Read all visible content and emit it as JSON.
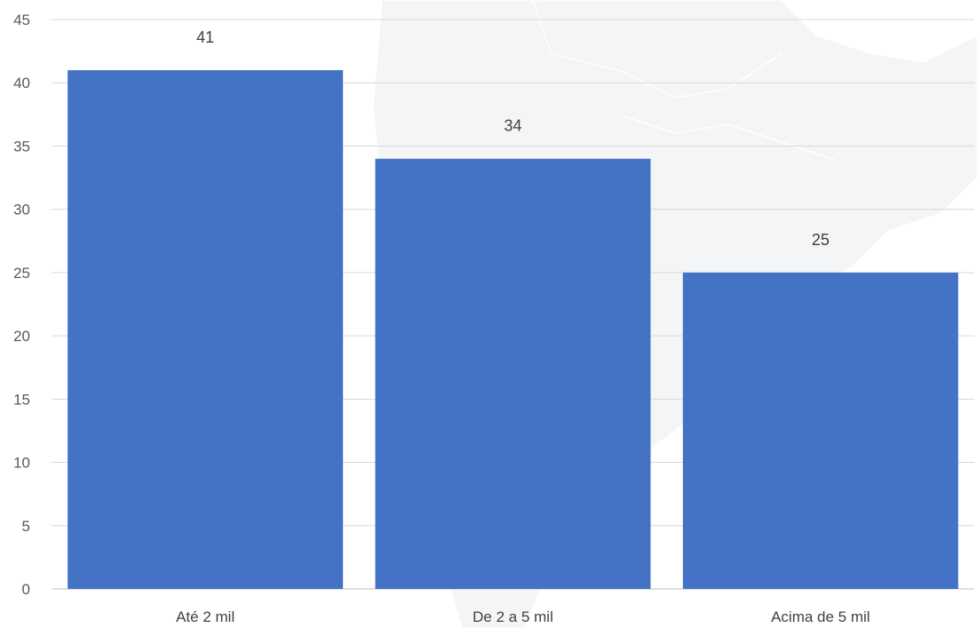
{
  "chart_data": {
    "type": "bar",
    "title": "",
    "xlabel": "",
    "ylabel": "",
    "categories": [
      "Até 2 mil",
      "De 2 a 5 mil",
      "Acima de 5 mil"
    ],
    "values": [
      41,
      34,
      25
    ],
    "data_labels": [
      "41",
      "34",
      "25"
    ],
    "ylim": [
      0,
      45
    ],
    "yticks": [
      "0",
      "5",
      "10",
      "15",
      "20",
      "25",
      "30",
      "35",
      "40",
      "45"
    ],
    "grid": true,
    "legend": "none",
    "bar_color": "#4472c4"
  }
}
